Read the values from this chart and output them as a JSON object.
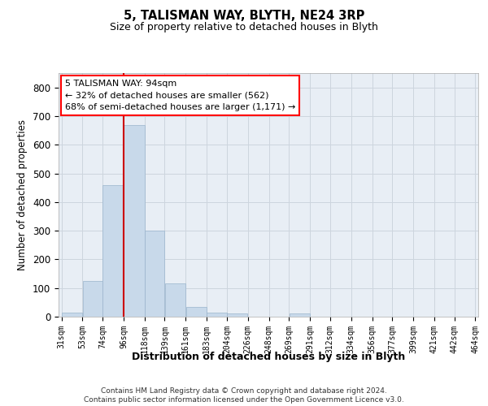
{
  "title": "5, TALISMAN WAY, BLYTH, NE24 3RP",
  "subtitle": "Size of property relative to detached houses in Blyth",
  "xlabel": "Distribution of detached houses by size in Blyth",
  "ylabel": "Number of detached properties",
  "bar_color": "#c8d9ea",
  "bar_edge_color": "#9ab4cc",
  "vline_color": "#cc0000",
  "vline_x": 96,
  "annotation_text": "5 TALISMAN WAY: 94sqm\n← 32% of detached houses are smaller (562)\n68% of semi-detached houses are larger (1,171) →",
  "bins": [
    31,
    53,
    74,
    96,
    118,
    139,
    161,
    183,
    204,
    226,
    248,
    269,
    291,
    312,
    334,
    356,
    377,
    399,
    421,
    442,
    464
  ],
  "values": [
    15,
    125,
    460,
    670,
    300,
    115,
    35,
    15,
    10,
    0,
    0,
    10,
    0,
    0,
    0,
    0,
    0,
    0,
    0,
    0
  ],
  "ylim": [
    0,
    850
  ],
  "yticks": [
    0,
    100,
    200,
    300,
    400,
    500,
    600,
    700,
    800
  ],
  "grid_color": "#cdd5de",
  "background_color": "#e8eef5",
  "footnote": "Contains HM Land Registry data © Crown copyright and database right 2024.\nContains public sector information licensed under the Open Government Licence v3.0."
}
